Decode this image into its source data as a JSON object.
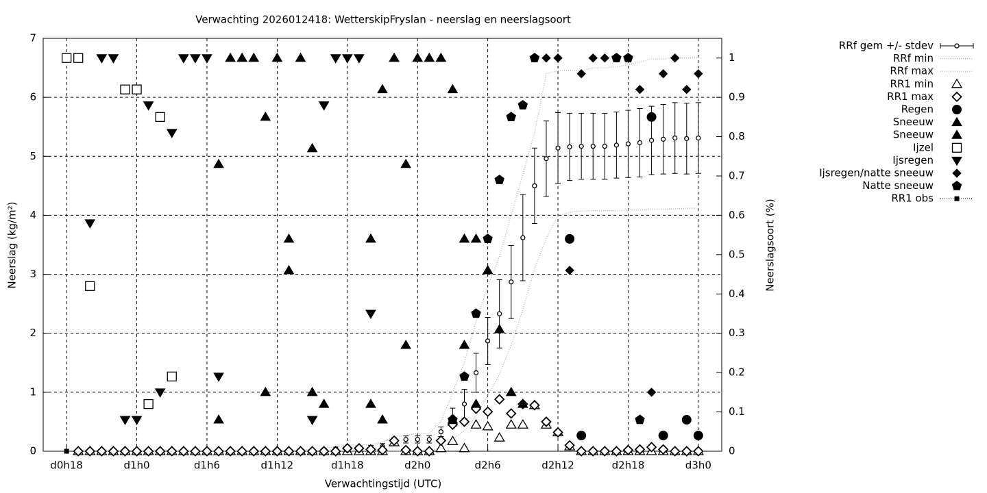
{
  "chart_data": {
    "type": "line",
    "title": "Verwachting 2026012418: WetterskipFryslan - neerslag en neerslagsoort",
    "xlabel": "Verwachtingstijd (UTC)",
    "ylabel": "Neerslag (kg/m²)",
    "y2label": "Neerslagsoort (%)",
    "xlim": [
      -2,
      56
    ],
    "xticks": [
      {
        "value": 0,
        "label": "d0h18"
      },
      {
        "value": 6,
        "label": "d1h0"
      },
      {
        "value": 12,
        "label": "d1h6"
      },
      {
        "value": 18,
        "label": "d1h12"
      },
      {
        "value": 24,
        "label": "d1h18"
      },
      {
        "value": 30,
        "label": "d2h0"
      },
      {
        "value": 36,
        "label": "d2h6"
      },
      {
        "value": 42,
        "label": "d2h12"
      },
      {
        "value": 48,
        "label": "d2h18"
      },
      {
        "value": 54,
        "label": "d3h0"
      }
    ],
    "ylim": [
      0,
      7
    ],
    "yticks": [
      0,
      1,
      2,
      3,
      4,
      5,
      6,
      7
    ],
    "y2lim": [
      0,
      1.05
    ],
    "y2ticks": [
      0,
      0.1,
      0.2,
      0.3,
      0.4,
      0.5,
      0.6,
      0.7,
      0.8,
      0.9,
      1
    ],
    "grid": true,
    "legend": "right",
    "series": [
      {
        "name": "RRf gem +/- stdev",
        "color": "#000000",
        "style": "errorbars",
        "marker": "open-circle-small",
        "x": [
          1,
          2,
          3,
          4,
          5,
          6,
          7,
          8,
          9,
          10,
          11,
          12,
          13,
          14,
          15,
          16,
          17,
          18,
          19,
          20,
          21,
          22,
          23,
          24,
          25,
          26,
          27,
          28,
          29,
          30,
          31,
          32,
          33,
          34,
          35,
          36,
          37,
          38,
          39,
          40,
          41,
          42,
          43,
          44,
          45,
          46,
          47,
          48,
          49,
          50,
          51,
          52,
          53,
          54
        ],
        "values": [
          0,
          0,
          0,
          0,
          0,
          0,
          0,
          0,
          0,
          0,
          0,
          0,
          0,
          0,
          0,
          0,
          0,
          0,
          0,
          0.01,
          0.02,
          0.03,
          0.04,
          0.05,
          0.05,
          0.06,
          0.08,
          0.18,
          0.2,
          0.2,
          0.2,
          0.33,
          0.58,
          0.8,
          1.33,
          1.87,
          2.33,
          2.87,
          3.62,
          4.5,
          4.96,
          5.14,
          5.16,
          5.17,
          5.17,
          5.17,
          5.19,
          5.21,
          5.23,
          5.27,
          5.29,
          5.31,
          5.3,
          5.31
        ],
        "errors": [
          0,
          0,
          0,
          0,
          0,
          0,
          0,
          0,
          0,
          0,
          0,
          0,
          0,
          0,
          0,
          0,
          0,
          0,
          0,
          0.01,
          0.01,
          0.02,
          0.03,
          0.03,
          0.04,
          0.04,
          0.05,
          0.05,
          0.06,
          0.06,
          0.06,
          0.08,
          0.15,
          0.25,
          0.33,
          0.4,
          0.58,
          0.62,
          0.73,
          0.64,
          0.64,
          0.6,
          0.57,
          0.56,
          0.56,
          0.56,
          0.56,
          0.57,
          0.58,
          0.58,
          0.59,
          0.6,
          0.6,
          0.6
        ]
      },
      {
        "name": "RRf min",
        "color": "#aaaaaa",
        "style": "dotted",
        "x": [
          1,
          2,
          3,
          4,
          5,
          6,
          7,
          8,
          9,
          10,
          11,
          12,
          13,
          14,
          15,
          16,
          17,
          18,
          19,
          20,
          21,
          22,
          23,
          24,
          25,
          26,
          27,
          28,
          29,
          30,
          31,
          32,
          33,
          34,
          35,
          36,
          37,
          38,
          39,
          40,
          41,
          42,
          43,
          44,
          45,
          46,
          47,
          48,
          49,
          50,
          51,
          52,
          53,
          54
        ],
        "values": [
          0,
          0,
          0,
          0,
          0,
          0,
          0,
          0,
          0,
          0,
          0,
          0,
          0,
          0,
          0,
          0,
          0,
          0,
          0,
          0,
          0,
          0,
          0,
          0,
          0,
          0,
          0,
          0,
          0,
          0,
          0.02,
          0.05,
          0.2,
          0.35,
          0.6,
          0.95,
          1.3,
          1.8,
          2.4,
          3.1,
          3.6,
          4.0,
          4.05,
          4.07,
          4.08,
          4.08,
          4.08,
          4.09,
          4.09,
          4.1,
          4.1,
          4.11,
          4.12,
          4.12
        ]
      },
      {
        "name": "RRf max",
        "color": "#aaaaaa",
        "style": "dotted",
        "x": [
          1,
          2,
          3,
          4,
          5,
          6,
          7,
          8,
          9,
          10,
          11,
          12,
          13,
          14,
          15,
          16,
          17,
          18,
          19,
          20,
          21,
          22,
          23,
          24,
          25,
          26,
          27,
          28,
          29,
          30,
          31,
          32,
          33,
          34,
          35,
          36,
          37,
          38,
          39,
          40,
          41,
          42,
          43,
          44,
          45,
          46,
          47,
          48,
          49,
          50,
          51,
          52,
          53,
          54
        ],
        "values": [
          0,
          0,
          0,
          0,
          0,
          0,
          0,
          0,
          0,
          0,
          0,
          0,
          0,
          0,
          0,
          0,
          0,
          0,
          0,
          0.02,
          0.03,
          0.05,
          0.08,
          0.1,
          0.1,
          0.12,
          0.15,
          0.25,
          0.27,
          0.3,
          0.3,
          0.5,
          1.0,
          1.5,
          2.2,
          2.8,
          3.3,
          4.0,
          4.7,
          5.4,
          6.4,
          6.45,
          6.45,
          6.45,
          6.5,
          6.5,
          6.52,
          6.55,
          6.6,
          6.65,
          6.65,
          6.68,
          6.68,
          6.68
        ]
      },
      {
        "name": "RR1 min",
        "color": "#000000",
        "style": "points",
        "marker": "open-triangle",
        "x": [
          1,
          2,
          3,
          4,
          5,
          6,
          7,
          8,
          9,
          10,
          11,
          12,
          13,
          14,
          15,
          16,
          17,
          18,
          19,
          20,
          21,
          22,
          23,
          24,
          25,
          26,
          27,
          28,
          29,
          30,
          31,
          32,
          33,
          34,
          35,
          36,
          37,
          38,
          39,
          40,
          41,
          42,
          43,
          44,
          45,
          46,
          47,
          48,
          49,
          50,
          51,
          52,
          53,
          54
        ],
        "values": [
          0,
          0,
          0,
          0,
          0,
          0,
          0,
          0,
          0,
          0,
          0,
          0,
          0,
          0,
          0,
          0,
          0,
          0,
          0,
          0,
          0,
          0,
          0,
          0,
          0,
          0,
          0,
          0.15,
          0,
          0,
          0,
          0.05,
          0.17,
          0.05,
          0.45,
          0.42,
          0.23,
          0.45,
          0.45,
          0.78,
          0.45,
          0.32,
          0.08,
          0,
          0,
          0,
          0,
          0,
          0,
          0,
          0,
          0,
          0,
          0
        ]
      },
      {
        "name": "RR1 max",
        "color": "#000000",
        "style": "points",
        "marker": "open-diamond",
        "x": [
          1,
          2,
          3,
          4,
          5,
          6,
          7,
          8,
          9,
          10,
          11,
          12,
          13,
          14,
          15,
          16,
          17,
          18,
          19,
          20,
          21,
          22,
          23,
          24,
          25,
          26,
          27,
          28,
          29,
          30,
          31,
          32,
          33,
          34,
          35,
          36,
          37,
          38,
          39,
          40,
          41,
          42,
          43,
          44,
          45,
          46,
          47,
          48,
          49,
          50,
          51,
          52,
          53,
          54
        ],
        "values": [
          0,
          0,
          0,
          0,
          0,
          0,
          0,
          0,
          0,
          0,
          0,
          0,
          0,
          0,
          0,
          0,
          0,
          0,
          0,
          0,
          0,
          0,
          0,
          0.05,
          0.05,
          0.03,
          0.02,
          0.18,
          0.02,
          0,
          0,
          0.18,
          0.45,
          0.5,
          0.72,
          0.67,
          0.88,
          0.64,
          0.8,
          0.78,
          0.5,
          0.32,
          0.1,
          0,
          0,
          0,
          0,
          0.02,
          0.03,
          0.07,
          0.03,
          0,
          0,
          0
        ]
      },
      {
        "name": "Regen",
        "color": "#000000",
        "style": "points",
        "marker": "filled-circle",
        "axis": "y2",
        "x": [
          43,
          44,
          50,
          51,
          53,
          54
        ],
        "values": [
          0.54,
          0.04,
          0.85,
          0.04,
          0.08,
          0.04
        ]
      },
      {
        "name": "Sneeuw",
        "color": "#000000",
        "style": "points",
        "marker": "filled-triangle",
        "axis": "y2",
        "x": [
          13,
          13,
          17,
          17,
          19,
          19,
          21,
          21,
          22,
          26,
          26,
          27,
          27,
          29,
          29,
          33,
          33,
          34,
          34,
          35,
          35,
          36,
          37,
          38,
          39
        ],
        "values": [
          0.73,
          0.08,
          0.85,
          0.15,
          0.54,
          0.46,
          0.77,
          0.15,
          0.12,
          0.54,
          0.12,
          0.92,
          0.08,
          0.73,
          0.27,
          0.92,
          0.08,
          0.54,
          0.27,
          0.54,
          0.12,
          0.46,
          0.31,
          0.15,
          0.12
        ]
      },
      {
        "name": "Sneeuw",
        "color": "#000000",
        "style": "points",
        "marker": "filled-triangle",
        "axis": "y2",
        "x": [
          14,
          15,
          16,
          18,
          20,
          28,
          30,
          31,
          32
        ],
        "values": [
          1,
          1,
          1,
          1,
          1,
          1,
          1,
          1,
          1
        ]
      },
      {
        "name": "Ijzel",
        "color": "#000000",
        "style": "points",
        "marker": "open-square",
        "axis": "y2",
        "x": [
          0,
          1,
          5,
          6,
          8,
          2,
          9,
          7
        ],
        "values": [
          1,
          1,
          0.92,
          0.92,
          0.85,
          0.42,
          0.19,
          0.12
        ]
      },
      {
        "name": "Ijsregen",
        "color": "#000000",
        "style": "points",
        "marker": "filled-triangle-down",
        "axis": "y2",
        "x": [
          3,
          4,
          10,
          11,
          12,
          23,
          24,
          25,
          7,
          9,
          2,
          5,
          6,
          8,
          13,
          22,
          21,
          26
        ],
        "values": [
          1,
          1,
          1,
          1,
          1,
          1,
          1,
          1,
          0.88,
          0.81,
          0.58,
          0.08,
          0.08,
          0.15,
          0.19,
          0.88,
          0.08,
          0.35
        ]
      },
      {
        "name": "Ijsregen/natte sneeuw",
        "color": "#000000",
        "style": "points",
        "marker": "filled-diamond",
        "axis": "y2",
        "x": [
          40,
          41,
          42,
          45,
          46,
          47,
          48,
          52,
          44,
          51,
          49,
          53,
          54,
          43,
          50,
          36
        ],
        "values": [
          1,
          1,
          1,
          1,
          1,
          1,
          1,
          1,
          0.96,
          0.96,
          0.92,
          0.92,
          0.96,
          0.46,
          0.15,
          0.54
        ]
      },
      {
        "name": "Natte sneeuw",
        "color": "#000000",
        "style": "points",
        "marker": "filled-pentagon",
        "axis": "y2",
        "x": [
          33,
          34,
          35,
          36,
          37,
          38,
          39,
          40,
          47,
          48,
          49
        ],
        "values": [
          0.08,
          0.19,
          0.35,
          0.54,
          0.69,
          0.85,
          0.88,
          1,
          1,
          1,
          0.08
        ]
      },
      {
        "name": "RR1 obs",
        "color": "#000000",
        "style": "linespoints",
        "marker": "filled-square-small",
        "x": [
          0
        ],
        "values": [
          0
        ]
      }
    ]
  }
}
